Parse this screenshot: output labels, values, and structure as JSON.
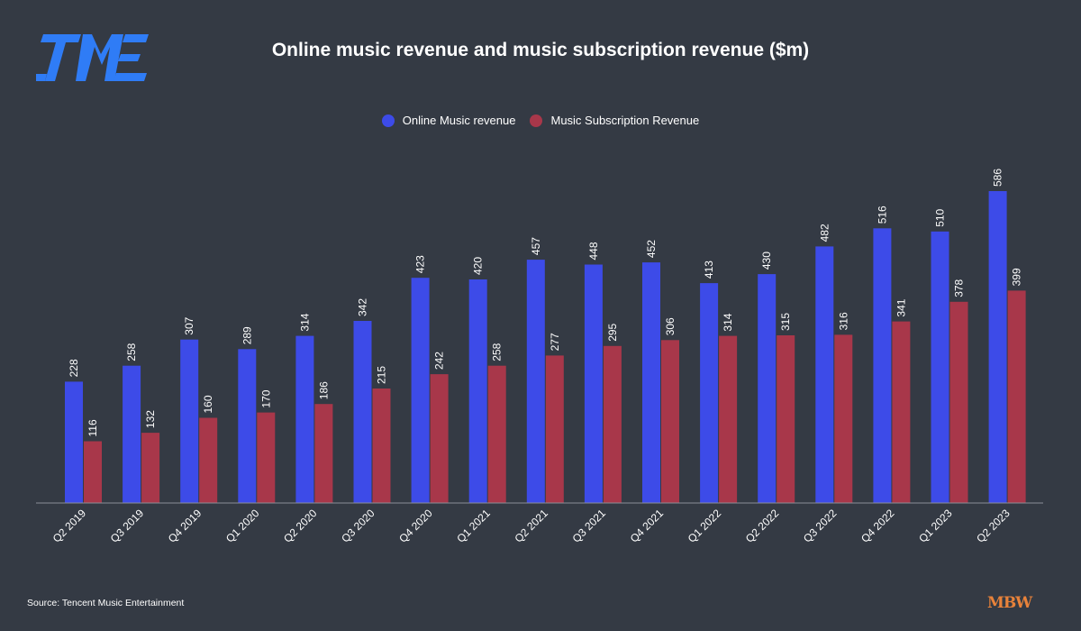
{
  "header": {
    "logo_icon": "tme-logo",
    "logo_color": "#2f7cf6"
  },
  "footer": {
    "source": "Source: Tencent Music Entertainment",
    "brand": "MBW",
    "brand_color": "#e8823a"
  },
  "chart_data": {
    "type": "bar",
    "title": "Online music revenue and music subscription revenue ($m)",
    "xlabel": "",
    "ylabel": "",
    "ylim": [
      0,
      620
    ],
    "grid": false,
    "legend_position": "top-center",
    "categories": [
      "Q2 2019",
      "Q3 2019",
      "Q4 2019",
      "Q1 2020",
      "Q2 2020",
      "Q3 2020",
      "Q4 2020",
      "Q1 2021",
      "Q2 2021",
      "Q3 2021",
      "Q4 2021",
      "Q1 2022",
      "Q2 2022",
      "Q3 2022",
      "Q4 2022",
      "Q1 2023",
      "Q2 2023"
    ],
    "series": [
      {
        "name": "Online Music revenue",
        "color": "#3d4be8",
        "values": [
          228,
          258,
          307,
          289,
          314,
          342,
          423,
          420,
          457,
          448,
          452,
          413,
          430,
          482,
          516,
          510,
          586
        ]
      },
      {
        "name": "Music Subscription Revenue",
        "color": "#a8374a",
        "values": [
          116,
          132,
          160,
          170,
          186,
          215,
          242,
          258,
          277,
          295,
          306,
          314,
          315,
          316,
          341,
          378,
          399
        ]
      }
    ]
  }
}
